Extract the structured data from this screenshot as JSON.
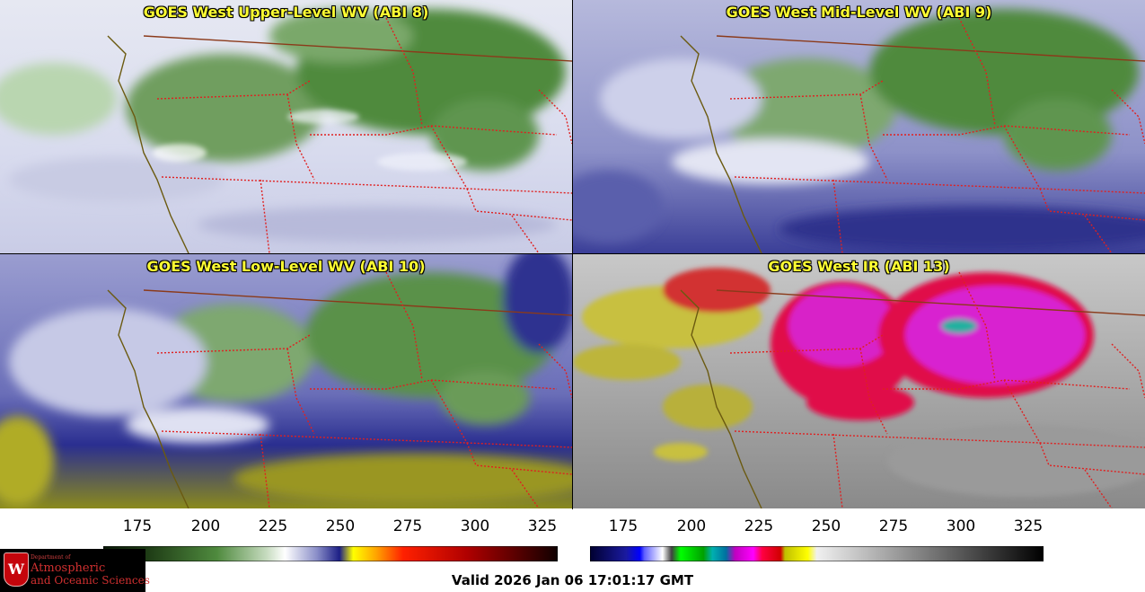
{
  "panels": [
    {
      "title": "GOES West Upper-Level WV (ABI 8)",
      "palette": "wv-upper"
    },
    {
      "title": "GOES West Mid-Level WV (ABI 9)",
      "palette": "wv-mid"
    },
    {
      "title": "GOES West Low-Level WV (ABI 10)",
      "palette": "wv-low"
    },
    {
      "title": "GOES West IR (ABI 13)",
      "palette": "ir"
    }
  ],
  "colorbars": {
    "wv": {
      "ticks": [
        "175",
        "200",
        "225",
        "250",
        "275",
        "300",
        "325"
      ]
    },
    "ir": {
      "ticks": [
        "175",
        "200",
        "225",
        "250",
        "275",
        "300",
        "325"
      ]
    }
  },
  "valid_time": "Valid 2026 Jan 06 17:01:17 GMT",
  "logo": {
    "line1": "Department of",
    "line2": "Atmospheric",
    "line3": "and Oceanic Sciences",
    "seal_letter": "W"
  },
  "colors": {
    "coastline": "#6b5a10",
    "state_border": "#e02020",
    "country_border": "#8b3a1a",
    "title": "#ffff33"
  }
}
